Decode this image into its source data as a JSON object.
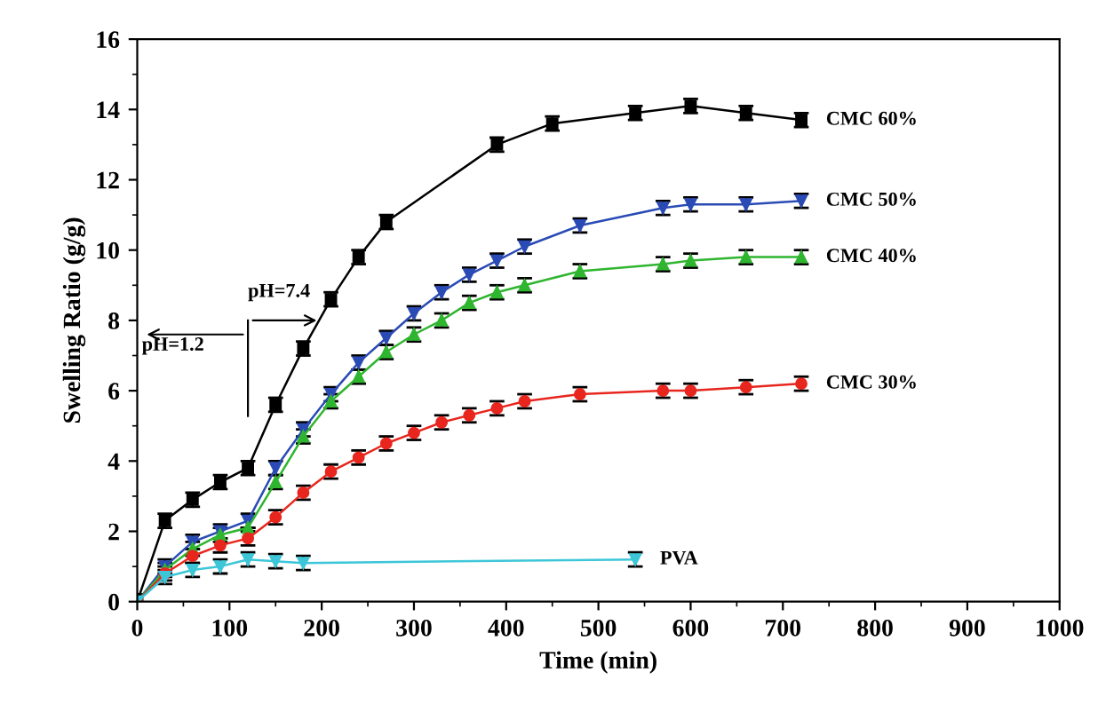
{
  "chart_data": {
    "type": "line",
    "xlabel": "Time (min)",
    "ylabel": "Swelling Ratio (g/g)",
    "xlim": [
      0,
      1000
    ],
    "xticks": [
      0,
      100,
      200,
      300,
      400,
      500,
      600,
      700,
      800,
      900,
      1000
    ],
    "ylim": [
      0,
      16
    ],
    "yticks": [
      0,
      2,
      4,
      6,
      8,
      10,
      12,
      14,
      16
    ],
    "grid": false,
    "legend": false,
    "line_style": "solid",
    "series": [
      {
        "name": "CMC 60%",
        "color": "#000000",
        "marker": "square",
        "x": [
          0,
          30,
          60,
          90,
          120,
          150,
          180,
          210,
          240,
          270,
          390,
          450,
          540,
          600,
          660,
          720
        ],
        "values": [
          0,
          2.3,
          2.9,
          3.4,
          3.8,
          5.6,
          7.2,
          8.6,
          9.8,
          10.8,
          13.0,
          13.6,
          13.9,
          14.1,
          13.9,
          13.7
        ],
        "errors": [
          0.2,
          0.2,
          0.2,
          0.2,
          0.2,
          0.2,
          0.2,
          0.2,
          0.2,
          0.2,
          0.2,
          0.2,
          0.2,
          0.2,
          0.2,
          0.2
        ]
      },
      {
        "name": "CMC 50%",
        "color": "#2a4bb5",
        "marker": "triangle_down",
        "x": [
          0,
          30,
          60,
          90,
          120,
          150,
          180,
          210,
          240,
          270,
          300,
          330,
          360,
          390,
          420,
          480,
          570,
          600,
          660,
          720
        ],
        "values": [
          0,
          1.0,
          1.7,
          2.0,
          2.3,
          3.8,
          4.9,
          5.9,
          6.8,
          7.5,
          8.2,
          8.8,
          9.3,
          9.7,
          10.1,
          10.7,
          11.2,
          11.3,
          11.3,
          11.4
        ],
        "errors": [
          0.2,
          0.2,
          0.2,
          0.2,
          0.2,
          0.2,
          0.2,
          0.2,
          0.2,
          0.2,
          0.2,
          0.2,
          0.2,
          0.2,
          0.2,
          0.2,
          0.2,
          0.2,
          0.2,
          0.2
        ]
      },
      {
        "name": "CMC 40%",
        "color": "#2fb52f",
        "marker": "triangle",
        "x": [
          0,
          30,
          60,
          90,
          120,
          150,
          180,
          210,
          240,
          270,
          300,
          330,
          360,
          390,
          420,
          480,
          570,
          600,
          660,
          720
        ],
        "values": [
          0,
          0.9,
          1.5,
          1.9,
          2.1,
          3.4,
          4.7,
          5.7,
          6.4,
          7.1,
          7.6,
          8.0,
          8.5,
          8.8,
          9.0,
          9.4,
          9.6,
          9.7,
          9.8,
          9.8
        ],
        "errors": [
          0.2,
          0.2,
          0.2,
          0.2,
          null,
          0.2,
          0.2,
          0.2,
          0.2,
          0.2,
          0.2,
          0.2,
          0.2,
          0.2,
          0.2,
          0.2,
          0.2,
          0.2,
          0.2,
          0.2
        ]
      },
      {
        "name": "CMC 30%",
        "color": "#e8261e",
        "marker": "circle",
        "x": [
          0,
          30,
          60,
          90,
          120,
          150,
          180,
          210,
          240,
          270,
          300,
          330,
          360,
          390,
          420,
          480,
          570,
          600,
          660,
          720
        ],
        "values": [
          0,
          0.8,
          1.3,
          1.6,
          1.8,
          2.4,
          3.1,
          3.7,
          4.1,
          4.5,
          4.8,
          5.1,
          5.3,
          5.5,
          5.7,
          5.9,
          6.0,
          6.0,
          6.1,
          6.2
        ],
        "errors": [
          0.2,
          0.2,
          0.2,
          0.2,
          0.2,
          0.2,
          0.2,
          0.2,
          0.2,
          0.2,
          0.2,
          0.2,
          0.2,
          0.2,
          0.2,
          0.2,
          0.2,
          0.2,
          0.2,
          0.2
        ]
      },
      {
        "name": "PVA",
        "color": "#3cc6d8",
        "marker": "triangle_down",
        "x": [
          0,
          30,
          60,
          90,
          120,
          150,
          180,
          540
        ],
        "values": [
          0,
          0.7,
          0.9,
          1.0,
          1.2,
          1.15,
          1.1,
          1.2
        ],
        "errors": [
          0.2,
          0.2,
          0.2,
          0.2,
          0.2,
          0.2,
          0.2,
          0.2
        ]
      }
    ],
    "annotations": [
      "pH=7.4",
      "pH=1.2"
    ]
  }
}
